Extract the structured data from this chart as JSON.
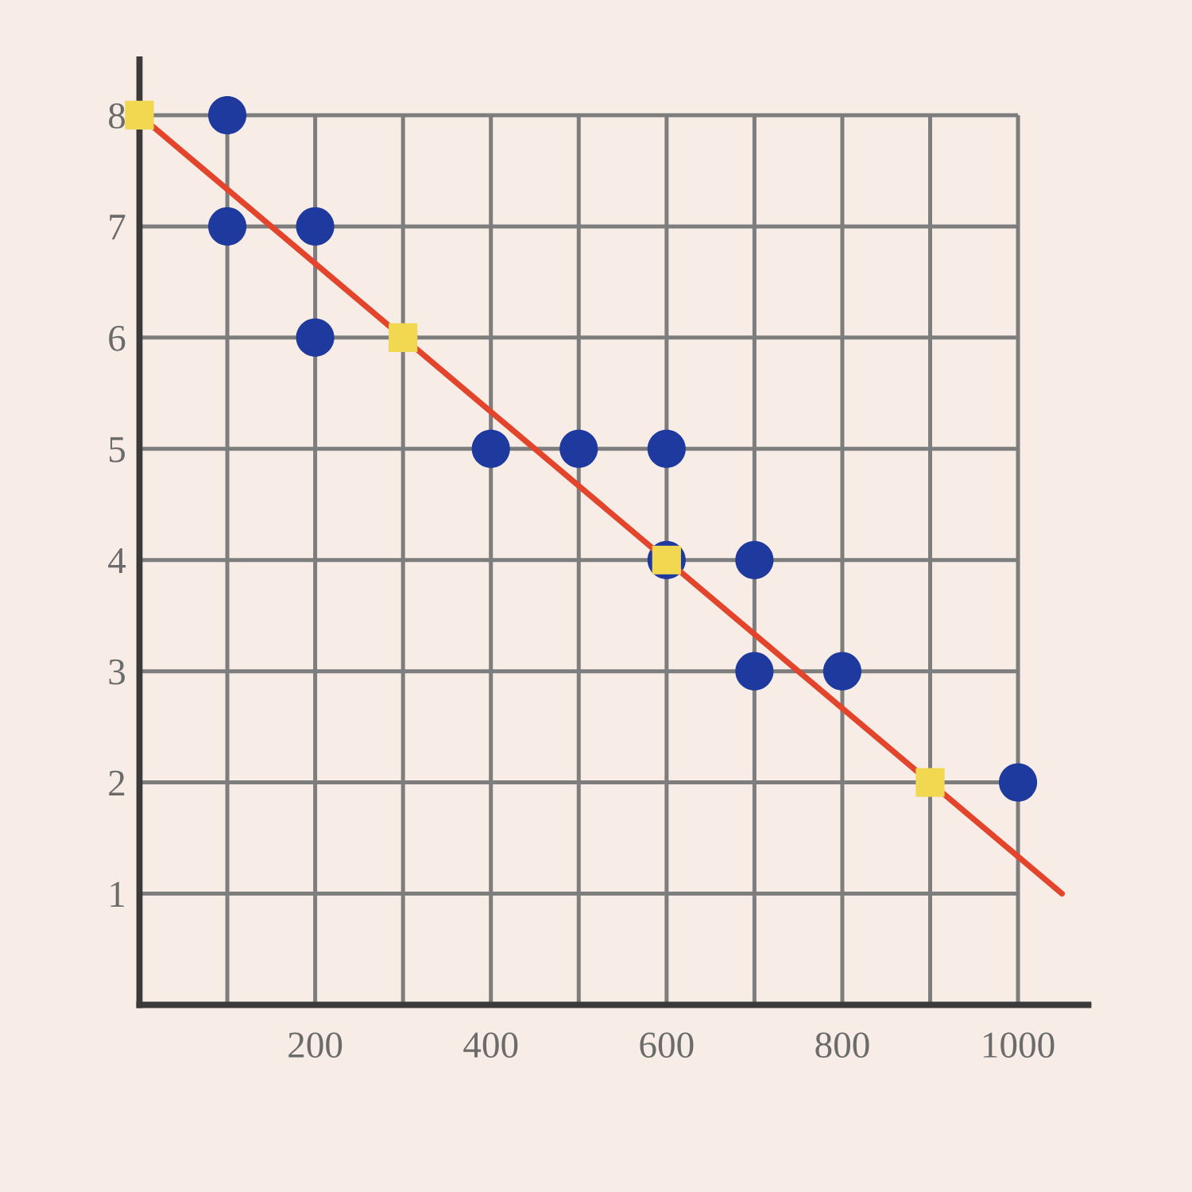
{
  "chart_data": {
    "type": "scatter",
    "xlim": [
      0,
      1080
    ],
    "ylim": [
      0,
      8.5
    ],
    "xticks": [
      {
        "value": 100,
        "label": null
      },
      200,
      {
        "value": 300,
        "label": null
      },
      400,
      {
        "value": 500,
        "label": null
      },
      600,
      {
        "value": 700,
        "label": null
      },
      800,
      {
        "value": 900,
        "label": null
      },
      1000
    ],
    "yticks": [
      1,
      2,
      3,
      4,
      5,
      6,
      7,
      8
    ],
    "grid": true,
    "series": [
      {
        "color": "#1f3a9e",
        "marker": "circle",
        "x": [
          100,
          100,
          200,
          200,
          400,
          500,
          600,
          600,
          700,
          700,
          800,
          1000
        ],
        "values": [
          8,
          7,
          7,
          6,
          5,
          5,
          5,
          4,
          4,
          3,
          3,
          2
        ]
      },
      {
        "type": "line",
        "color": "#e2452c",
        "marker": "none",
        "line_style": "solid",
        "x": [
          0,
          1050
        ],
        "values": [
          8,
          1
        ]
      },
      {
        "color": "#f2d750",
        "marker": "square",
        "x": [
          0,
          300,
          600,
          900
        ],
        "values": [
          8,
          6,
          4,
          2
        ]
      }
    ]
  }
}
